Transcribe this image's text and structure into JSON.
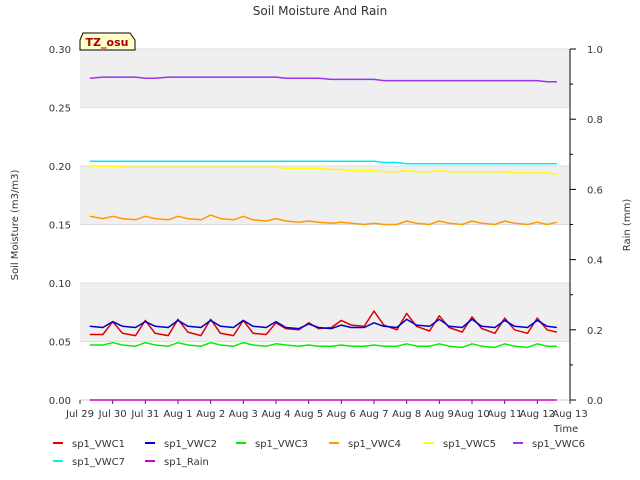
{
  "chart_data": {
    "type": "line",
    "title": "Soil Moisture And Rain",
    "site_label": "TZ_osu",
    "xlabel": "Time",
    "ylabel": "Soil Moisture (m3/m3)",
    "y2label": "Rain (mm)",
    "ylim": [
      0,
      0.3
    ],
    "y2lim": [
      0,
      1.0
    ],
    "xlim": [
      0,
      15
    ],
    "yticks": [
      "0.00",
      "0.05",
      "0.10",
      "0.15",
      "0.20",
      "0.25",
      "0.30"
    ],
    "y2ticks": [
      "0.0",
      "0.2",
      "0.4",
      "0.6",
      "0.8",
      "1.0"
    ],
    "categories": [
      "Jul 29",
      "Jul 30",
      "Jul 31",
      "Aug 1",
      "Aug 2",
      "Aug 3",
      "Aug 4",
      "Aug 5",
      "Aug 6",
      "Aug 7",
      "Aug 8",
      "Aug 9",
      "Aug 10",
      "Aug 11",
      "Aug 12",
      "Aug 13"
    ],
    "grid": "horizontal bands",
    "legend_position": "bottom",
    "x": [
      0.3,
      0.7,
      1.0,
      1.3,
      1.7,
      2.0,
      2.3,
      2.7,
      3.0,
      3.3,
      3.7,
      4.0,
      4.3,
      4.7,
      5.0,
      5.3,
      5.7,
      6.0,
      6.3,
      6.7,
      7.0,
      7.3,
      7.7,
      8.0,
      8.3,
      8.7,
      9.0,
      9.3,
      9.7,
      10.0,
      10.3,
      10.7,
      11.0,
      11.3,
      11.7,
      12.0,
      12.3,
      12.7,
      13.0,
      13.3,
      13.7,
      14.0,
      14.3,
      14.6
    ],
    "series": [
      {
        "name": "sp1_VWC1",
        "color": "#dd0000",
        "axis": "left",
        "values": [
          0.056,
          0.056,
          0.067,
          0.057,
          0.055,
          0.068,
          0.057,
          0.055,
          0.069,
          0.058,
          0.055,
          0.069,
          0.057,
          0.055,
          0.068,
          0.057,
          0.056,
          0.066,
          0.061,
          0.06,
          0.066,
          0.061,
          0.062,
          0.068,
          0.064,
          0.063,
          0.076,
          0.064,
          0.06,
          0.074,
          0.063,
          0.059,
          0.072,
          0.062,
          0.058,
          0.071,
          0.061,
          0.057,
          0.07,
          0.06,
          0.057,
          0.07,
          0.06,
          0.058
        ]
      },
      {
        "name": "sp1_VWC2",
        "color": "#0000cc",
        "axis": "left",
        "values": [
          0.063,
          0.062,
          0.067,
          0.063,
          0.062,
          0.067,
          0.063,
          0.062,
          0.068,
          0.063,
          0.062,
          0.068,
          0.063,
          0.062,
          0.068,
          0.063,
          0.062,
          0.067,
          0.062,
          0.061,
          0.065,
          0.062,
          0.061,
          0.064,
          0.062,
          0.062,
          0.066,
          0.063,
          0.062,
          0.069,
          0.064,
          0.063,
          0.069,
          0.063,
          0.062,
          0.069,
          0.063,
          0.062,
          0.068,
          0.063,
          0.062,
          0.068,
          0.063,
          0.062
        ]
      },
      {
        "name": "sp1_VWC3",
        "color": "#00ee00",
        "axis": "left",
        "values": [
          0.047,
          0.047,
          0.049,
          0.047,
          0.046,
          0.049,
          0.047,
          0.046,
          0.049,
          0.047,
          0.046,
          0.049,
          0.047,
          0.046,
          0.049,
          0.047,
          0.046,
          0.048,
          0.047,
          0.046,
          0.047,
          0.046,
          0.046,
          0.047,
          0.046,
          0.046,
          0.047,
          0.046,
          0.046,
          0.048,
          0.046,
          0.046,
          0.048,
          0.046,
          0.045,
          0.048,
          0.046,
          0.045,
          0.048,
          0.046,
          0.045,
          0.048,
          0.046,
          0.046
        ]
      },
      {
        "name": "sp1_VWC4",
        "color": "#ff9900",
        "axis": "left",
        "values": [
          0.157,
          0.155,
          0.157,
          0.155,
          0.154,
          0.157,
          0.155,
          0.154,
          0.157,
          0.155,
          0.154,
          0.158,
          0.155,
          0.154,
          0.157,
          0.154,
          0.153,
          0.155,
          0.153,
          0.152,
          0.153,
          0.152,
          0.151,
          0.152,
          0.151,
          0.15,
          0.151,
          0.15,
          0.15,
          0.153,
          0.151,
          0.15,
          0.153,
          0.151,
          0.15,
          0.153,
          0.151,
          0.15,
          0.153,
          0.151,
          0.15,
          0.152,
          0.15,
          0.152
        ]
      },
      {
        "name": "sp1_VWC5",
        "color": "#ffff00",
        "axis": "left",
        "values": [
          0.2,
          0.2,
          0.2,
          0.199,
          0.199,
          0.199,
          0.199,
          0.199,
          0.199,
          0.199,
          0.199,
          0.199,
          0.199,
          0.199,
          0.199,
          0.199,
          0.199,
          0.199,
          0.198,
          0.198,
          0.198,
          0.198,
          0.197,
          0.197,
          0.196,
          0.196,
          0.196,
          0.195,
          0.195,
          0.196,
          0.195,
          0.195,
          0.196,
          0.195,
          0.195,
          0.195,
          0.195,
          0.195,
          0.195,
          0.194,
          0.194,
          0.194,
          0.194,
          0.193
        ]
      },
      {
        "name": "sp1_VWC6",
        "color": "#9933ee",
        "axis": "left",
        "values": [
          0.275,
          0.276,
          0.276,
          0.276,
          0.276,
          0.275,
          0.275,
          0.276,
          0.276,
          0.276,
          0.276,
          0.276,
          0.276,
          0.276,
          0.276,
          0.276,
          0.276,
          0.276,
          0.275,
          0.275,
          0.275,
          0.275,
          0.274,
          0.274,
          0.274,
          0.274,
          0.274,
          0.273,
          0.273,
          0.273,
          0.273,
          0.273,
          0.273,
          0.273,
          0.273,
          0.273,
          0.273,
          0.273,
          0.273,
          0.273,
          0.273,
          0.273,
          0.272,
          0.272
        ]
      },
      {
        "name": "sp1_VWC7",
        "color": "#00eeee",
        "axis": "left",
        "values": [
          0.204,
          0.204,
          0.204,
          0.204,
          0.204,
          0.204,
          0.204,
          0.204,
          0.204,
          0.204,
          0.204,
          0.204,
          0.204,
          0.204,
          0.204,
          0.204,
          0.204,
          0.204,
          0.204,
          0.204,
          0.204,
          0.204,
          0.204,
          0.204,
          0.204,
          0.204,
          0.204,
          0.203,
          0.203,
          0.202,
          0.202,
          0.202,
          0.202,
          0.202,
          0.202,
          0.202,
          0.202,
          0.202,
          0.202,
          0.202,
          0.202,
          0.202,
          0.202,
          0.202
        ]
      },
      {
        "name": "sp1_Rain",
        "color": "#cc00cc",
        "axis": "right",
        "values": [
          0,
          0,
          0,
          0,
          0,
          0,
          0,
          0,
          0,
          0,
          0,
          0,
          0,
          0,
          0,
          0,
          0,
          0,
          0,
          0,
          0,
          0,
          0,
          0,
          0,
          0,
          0,
          0,
          0,
          0,
          0,
          0,
          0,
          0,
          0,
          0,
          0,
          0,
          0,
          0,
          0,
          0,
          0,
          0
        ]
      }
    ]
  }
}
